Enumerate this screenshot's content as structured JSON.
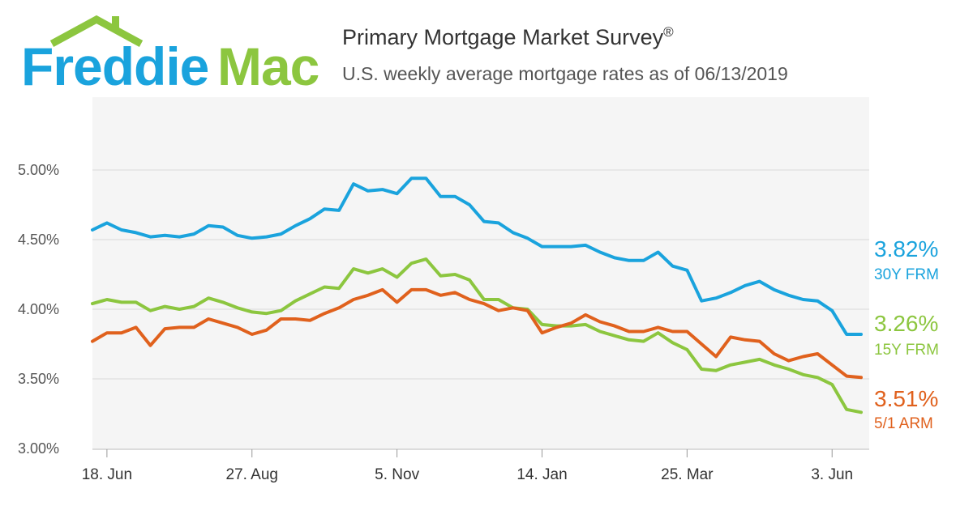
{
  "logo": {
    "word1": "Freddie",
    "word2": "Mac",
    "colors": {
      "freddie": "#1aa3dd",
      "mac": "#8cc63f"
    }
  },
  "header": {
    "title": "Primary Mortgage Market Survey",
    "title_mark": "®",
    "subtitle": "U.S. weekly average mortgage rates as of 06/13/2019"
  },
  "chart_data": {
    "type": "line",
    "title": "Primary Mortgage Market Survey",
    "subtitle": "U.S. weekly average mortgage rates as of 06/13/2019",
    "xlabel": "",
    "ylabel": "",
    "x_ticks": [
      "18. Jun",
      "27. Aug",
      "5. Nov",
      "14. Jan",
      "25. Mar",
      "3. Jun"
    ],
    "y_ticks": [
      "3.00%",
      "3.50%",
      "4.00%",
      "4.50%",
      "5.00%"
    ],
    "ylim": [
      3.0,
      5.0
    ],
    "grid": true,
    "background": "#f5f5f5",
    "legend": "right end labels",
    "series": [
      {
        "name": "30Y FRM",
        "color": "#1aa3dd",
        "end_label": "3.82%",
        "values": [
          4.57,
          4.62,
          4.57,
          4.55,
          4.52,
          4.53,
          4.52,
          4.54,
          4.6,
          4.59,
          4.53,
          4.51,
          4.52,
          4.54,
          4.6,
          4.65,
          4.72,
          4.71,
          4.9,
          4.85,
          4.86,
          4.83,
          4.94,
          4.94,
          4.81,
          4.81,
          4.75,
          4.63,
          4.62,
          4.55,
          4.51,
          4.45,
          4.45,
          4.45,
          4.46,
          4.41,
          4.37,
          4.35,
          4.35,
          4.41,
          4.31,
          4.28,
          4.06,
          4.08,
          4.12,
          4.17,
          4.2,
          4.14,
          4.1,
          4.07,
          4.06,
          3.99,
          3.82,
          3.82
        ]
      },
      {
        "name": "15Y FRM",
        "color": "#8cc63f",
        "end_label": "3.26%",
        "values": [
          4.04,
          4.07,
          4.05,
          4.05,
          3.99,
          4.02,
          4.0,
          4.02,
          4.08,
          4.05,
          4.01,
          3.98,
          3.97,
          3.99,
          4.06,
          4.11,
          4.16,
          4.15,
          4.29,
          4.26,
          4.29,
          4.23,
          4.33,
          4.36,
          4.24,
          4.25,
          4.21,
          4.07,
          4.07,
          4.01,
          4.0,
          3.89,
          3.88,
          3.88,
          3.89,
          3.84,
          3.81,
          3.78,
          3.77,
          3.83,
          3.76,
          3.71,
          3.57,
          3.56,
          3.6,
          3.62,
          3.64,
          3.6,
          3.57,
          3.53,
          3.51,
          3.46,
          3.28,
          3.26
        ]
      },
      {
        "name": "5/1 ARM",
        "color": "#e0611d",
        "end_label": "3.51%",
        "values": [
          3.77,
          3.83,
          3.83,
          3.87,
          3.74,
          3.86,
          3.87,
          3.87,
          3.93,
          3.9,
          3.87,
          3.82,
          3.85,
          3.93,
          3.93,
          3.92,
          3.97,
          4.01,
          4.07,
          4.1,
          4.14,
          4.05,
          4.14,
          4.14,
          4.1,
          4.12,
          4.07,
          4.04,
          3.99,
          4.01,
          3.99,
          3.83,
          3.87,
          3.9,
          3.96,
          3.91,
          3.88,
          3.84,
          3.84,
          3.87,
          3.84,
          3.84,
          3.75,
          3.66,
          3.8,
          3.78,
          3.77,
          3.68,
          3.63,
          3.66,
          3.68,
          3.6,
          3.52,
          3.51
        ]
      }
    ]
  }
}
